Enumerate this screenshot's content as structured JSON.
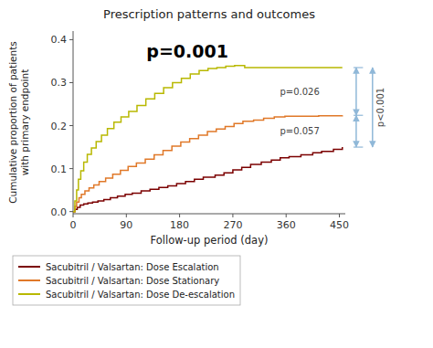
{
  "chart_data": {
    "type": "step",
    "title": "Prescription patterns and outcomes",
    "x_label": "Follow-up period (day)",
    "y_label": "Cumulative proportion of patients\nwith primary endpoint",
    "xlim": [
      0,
      460
    ],
    "ylim": [
      -0.005,
      0.42
    ],
    "xticks": [
      0,
      90,
      180,
      270,
      360,
      450
    ],
    "yticks": [
      {
        "value": 0.0,
        "label": "0.0"
      },
      0.1,
      0.2,
      0.3,
      0.4
    ],
    "grid": false,
    "legend": "bottom",
    "series": [
      {
        "name": "Sacubitril / Valsartan: Dose Escalation",
        "color": "#7B0000",
        "x": [
          0,
          3,
          7,
          12,
          18,
          25,
          33,
          42,
          52,
          63,
          75,
          88,
          100,
          115,
          130,
          145,
          160,
          175,
          190,
          205,
          220,
          240,
          255,
          270,
          285,
          300,
          318,
          335,
          350,
          365,
          385,
          405,
          420,
          440,
          455
        ],
        "values": [
          0,
          0.005,
          0.01,
          0.015,
          0.018,
          0.02,
          0.022,
          0.025,
          0.028,
          0.032,
          0.036,
          0.04,
          0.043,
          0.048,
          0.052,
          0.056,
          0.06,
          0.065,
          0.07,
          0.075,
          0.08,
          0.085,
          0.09,
          0.097,
          0.103,
          0.11,
          0.115,
          0.12,
          0.125,
          0.128,
          0.132,
          0.137,
          0.14,
          0.145,
          0.15
        ]
      },
      {
        "name": "Sacubitril / Valsartan: Dose Stationary",
        "color": "#E07828",
        "x": [
          0,
          3,
          6,
          10,
          14,
          20,
          27,
          35,
          44,
          55,
          67,
          80,
          93,
          107,
          122,
          137,
          152,
          167,
          182,
          197,
          212,
          227,
          242,
          257,
          272,
          287,
          305,
          322,
          340,
          358,
          375,
          395,
          415,
          435,
          455
        ],
        "values": [
          0,
          0.012,
          0.022,
          0.032,
          0.04,
          0.048,
          0.055,
          0.062,
          0.07,
          0.078,
          0.087,
          0.096,
          0.105,
          0.113,
          0.122,
          0.132,
          0.142,
          0.152,
          0.162,
          0.17,
          0.178,
          0.186,
          0.192,
          0.198,
          0.205,
          0.21,
          0.213,
          0.217,
          0.22,
          0.222,
          0.222,
          0.222,
          0.223,
          0.223,
          0.224
        ]
      },
      {
        "name": "Sacubitril / Valsartan: Dose De-escalation",
        "color": "#B8B800",
        "x": [
          0,
          3,
          6,
          9,
          13,
          18,
          24,
          31,
          39,
          48,
          58,
          69,
          81,
          94,
          108,
          123,
          138,
          153,
          168,
          183,
          198,
          213,
          228,
          243,
          258,
          273,
          290,
          308,
          323,
          338,
          355,
          375,
          400,
          430,
          455
        ],
        "values": [
          0,
          0.025,
          0.05,
          0.075,
          0.095,
          0.115,
          0.133,
          0.148,
          0.163,
          0.178,
          0.193,
          0.208,
          0.22,
          0.233,
          0.247,
          0.262,
          0.275,
          0.288,
          0.3,
          0.31,
          0.32,
          0.328,
          0.333,
          0.335,
          0.338,
          0.34,
          0.335,
          0.335,
          0.335,
          0.335,
          0.335,
          0.335,
          0.335,
          0.335,
          0.335
        ]
      }
    ],
    "annotations": [
      {
        "text": "p=0.001"
      },
      {
        "text": "p=0.026",
        "y_from": 0.335,
        "y_to": 0.224,
        "color": "#90b8d8"
      },
      {
        "text": "p=0.057",
        "y_from": 0.224,
        "y_to": 0.15,
        "color": "#90b8d8"
      },
      {
        "text": "p<0.001",
        "y_from": 0.335,
        "y_to": 0.15,
        "color": "#90b8d8"
      }
    ]
  }
}
